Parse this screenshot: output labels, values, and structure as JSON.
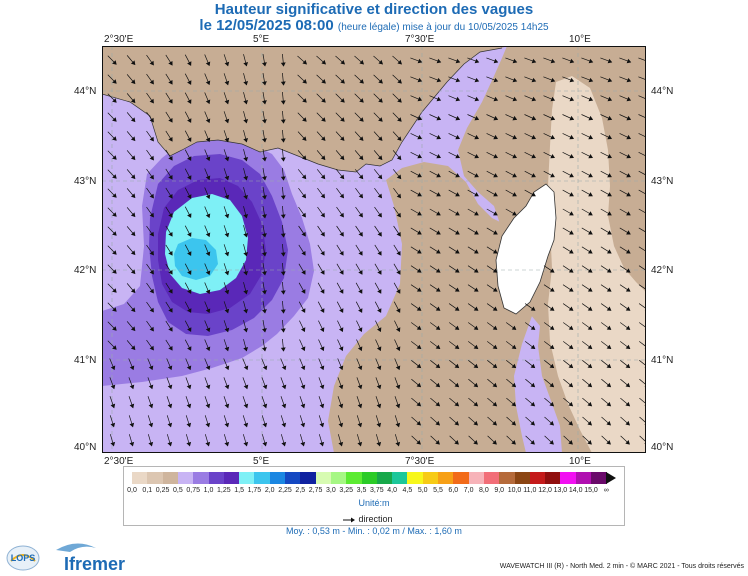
{
  "title": {
    "line1": "Hauteur significative et direction des vagues",
    "date": "le 12/05/2025 08:00",
    "update": "(heure légale) mise à jour du 10/05/2025 14h25"
  },
  "axes": {
    "lon_labels": [
      "2°30'E",
      "5°E",
      "7°30'E",
      "10°E"
    ],
    "lat_labels": [
      "44°N",
      "43°N",
      "42°N",
      "41°N",
      "40°N"
    ]
  },
  "legend": {
    "levels": [
      "0,0",
      "0,1",
      "0,25",
      "0,5",
      "0,75",
      "1,0",
      "1,25",
      "1,5",
      "1,75",
      "2,0",
      "2,25",
      "2,5",
      "2,75",
      "3,0",
      "3,25",
      "3,5",
      "3,75",
      "4,0",
      "4,5",
      "5,0",
      "5,5",
      "6,0",
      "7,0",
      "8,0",
      "9,0",
      "10,0",
      "11,0",
      "12,0",
      "13,0",
      "14,0",
      "15,0",
      "∞"
    ],
    "colors": [
      "#ead8c6",
      "#dcc6b1",
      "#cfb59d",
      "#c8b4f4",
      "#9a7ce3",
      "#6a43c9",
      "#5a28b8",
      "#7ef0f6",
      "#3cc5ee",
      "#1b87e2",
      "#1448c2",
      "#0f22a0",
      "#d7fbb2",
      "#a6f784",
      "#5ceb32",
      "#2bcb27",
      "#17a84a",
      "#1cc79a",
      "#f7f71b",
      "#f7cb16",
      "#f7a016",
      "#f26b19",
      "#f7b3b9",
      "#f26e78",
      "#b56a3a",
      "#8b4513",
      "#c41a1a",
      "#900e0e",
      "#f20ff2",
      "#b00fb0",
      "#6a0a6a"
    ],
    "unit": "Unité:m",
    "direction_label": "direction"
  },
  "stats": "Moy. : 0,53 m   -   Min. : 0,02 m / Max. : 1,60 m",
  "credits": "WAVEWATCH III (R) - North Med. 2 min - © MARC 2021 - Tous droits réservés",
  "logos": {
    "lops": "LOPS",
    "ifremer": "Ifremer"
  },
  "colors": {
    "land": "#c7ad94",
    "land_light": "#ead8c6",
    "corsica": "#ffffff",
    "frame_bg": "#ffffff"
  },
  "icons": [
    "arrow-icon",
    "lops-logo",
    "ifremer-logo"
  ]
}
